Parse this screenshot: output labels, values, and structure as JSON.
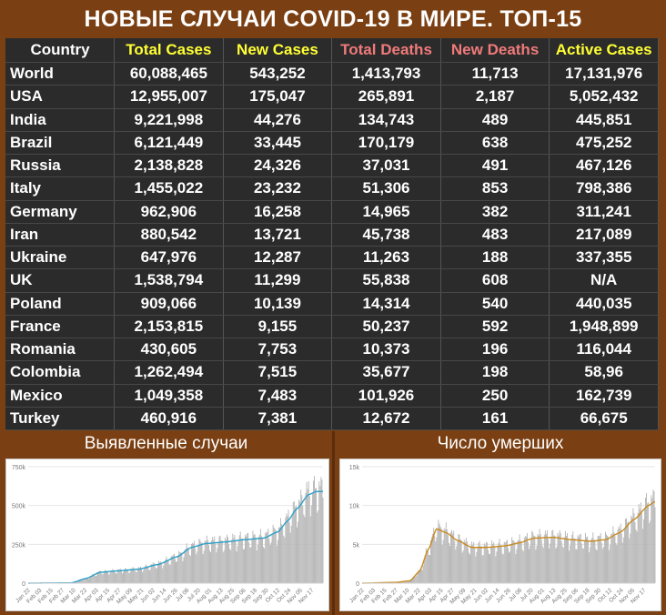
{
  "title": "НОВЫЕ СЛУЧАИ COVID-19 В МИРЕ. ТОП-15",
  "table": {
    "headers": [
      "Country",
      "Total Cases",
      "New Cases",
      "Total Deaths",
      "New Deaths",
      "Active Cases"
    ],
    "rows": [
      [
        "World",
        "60,088,465",
        "543,252",
        "1,413,793",
        "11,713",
        "17,131,976"
      ],
      [
        "USA",
        "12,955,007",
        "175,047",
        "265,891",
        "2,187",
        "5,052,432"
      ],
      [
        "India",
        "9,221,998",
        "44,276",
        "134,743",
        "489",
        "445,851"
      ],
      [
        "Brazil",
        "6,121,449",
        "33,445",
        "170,179",
        "638",
        "475,252"
      ],
      [
        "Russia",
        "2,138,828",
        "24,326",
        "37,031",
        "491",
        "467,126"
      ],
      [
        "Italy",
        "1,455,022",
        "23,232",
        "51,306",
        "853",
        "798,386"
      ],
      [
        "Germany",
        "962,906",
        "16,258",
        "14,965",
        "382",
        "311,241"
      ],
      [
        "Iran",
        "880,542",
        "13,721",
        "45,738",
        "483",
        "217,089"
      ],
      [
        "Ukraine",
        "647,976",
        "12,287",
        "11,263",
        "188",
        "337,355"
      ],
      [
        "UK",
        "1,538,794",
        "11,299",
        "55,838",
        "608",
        "N/A"
      ],
      [
        "Poland",
        "909,066",
        "10,139",
        "14,314",
        "540",
        "440,035"
      ],
      [
        "France",
        "2,153,815",
        "9,155",
        "50,237",
        "592",
        "1,948,899"
      ],
      [
        "Romania",
        "430,605",
        "7,753",
        "10,373",
        "196",
        "116,044"
      ],
      [
        "Colombia",
        "1,262,494",
        "7,515",
        "35,677",
        "198",
        "58,96"
      ],
      [
        "Mexico",
        "1,049,358",
        "7,483",
        "101,926",
        "250",
        "162,739"
      ],
      [
        "Turkey",
        "460,916",
        "7,381",
        "12,672",
        "161",
        "66,675"
      ]
    ]
  },
  "colors": {
    "header_country": "#ffffff",
    "header_total_cases": "#ffff33",
    "header_new_cases": "#ffff33",
    "header_total_deaths": "#f07a7a",
    "header_new_deaths": "#f07a7a",
    "header_active_cases": "#ffff33",
    "cases_line": "#2aa0c9",
    "deaths_line": "#c98a1e",
    "bars": "#b4b4b4",
    "background": "#7a3f12",
    "table_bg": "#2b2b2b"
  },
  "chart_data": [
    {
      "type": "bar",
      "title": "Выявленные случаи",
      "ylim": [
        0,
        750000
      ],
      "yticks": [
        "0",
        "250k",
        "500k",
        "750k"
      ],
      "ytick_values": [
        0,
        250000,
        500000,
        750000
      ],
      "x_tick_labels": [
        "Jan 22",
        "Feb 03",
        "Feb 15",
        "Feb 27",
        "Mar 10",
        "Mar 22",
        "Apr 03",
        "Apr 15",
        "Apr 27",
        "May 09",
        "May 21",
        "Jun 02",
        "Jun 14",
        "Jun 26",
        "Jul 08",
        "Jul 20",
        "Aug 01",
        "Aug 13",
        "Aug 25",
        "Sep 06",
        "Sep 18",
        "Sep 30",
        "Oct 12",
        "Oct 24",
        "Nov 05",
        "Nov 17"
      ],
      "moving_average_anchors": [
        [
          0,
          0
        ],
        [
          20,
          1000
        ],
        [
          45,
          2000
        ],
        [
          60,
          30000
        ],
        [
          75,
          70000
        ],
        [
          95,
          80000
        ],
        [
          115,
          90000
        ],
        [
          135,
          120000
        ],
        [
          155,
          170000
        ],
        [
          170,
          230000
        ],
        [
          185,
          255000
        ],
        [
          205,
          265000
        ],
        [
          225,
          280000
        ],
        [
          245,
          290000
        ],
        [
          260,
          330000
        ],
        [
          270,
          400000
        ],
        [
          280,
          480000
        ],
        [
          292,
          570000
        ],
        [
          300,
          590000
        ],
        [
          307,
          590000
        ]
      ],
      "grid": true,
      "legend": "none"
    },
    {
      "type": "bar",
      "title": "Число умерших",
      "ylim": [
        0,
        15000
      ],
      "yticks": [
        "0",
        "5k",
        "10k",
        "15k"
      ],
      "ytick_values": [
        0,
        5000,
        10000,
        15000
      ],
      "x_tick_labels": [
        "Jan 22",
        "Feb 03",
        "Feb 15",
        "Feb 27",
        "Mar 10",
        "Mar 22",
        "Apr 03",
        "Apr 15",
        "Apr 27",
        "May 09",
        "May 21",
        "Jun 02",
        "Jun 14",
        "Jun 26",
        "Jul 08",
        "Jul 20",
        "Aug 01",
        "Aug 13",
        "Aug 25",
        "Sep 06",
        "Sep 18",
        "Sep 30",
        "Oct 12",
        "Oct 24",
        "Nov 05",
        "Nov 17"
      ],
      "moving_average_anchors": [
        [
          0,
          0
        ],
        [
          35,
          100
        ],
        [
          50,
          300
        ],
        [
          60,
          1500
        ],
        [
          70,
          4500
        ],
        [
          78,
          7000
        ],
        [
          88,
          6500
        ],
        [
          100,
          5500
        ],
        [
          115,
          4600
        ],
        [
          130,
          4600
        ],
        [
          150,
          4800
        ],
        [
          165,
          5200
        ],
        [
          180,
          5800
        ],
        [
          200,
          5900
        ],
        [
          220,
          5600
        ],
        [
          240,
          5400
        ],
        [
          255,
          5600
        ],
        [
          270,
          6500
        ],
        [
          285,
          8200
        ],
        [
          300,
          10000
        ],
        [
          307,
          10500
        ]
      ],
      "grid": true,
      "legend": "none"
    }
  ]
}
